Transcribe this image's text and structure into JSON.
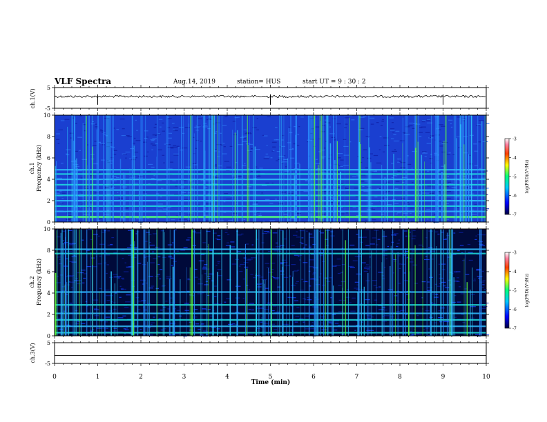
{
  "header": {
    "title": "VLF Spectra",
    "date": "Aug.14, 2019",
    "station": "station= HUS",
    "start": "start  UT =   9 : 30 : 2"
  },
  "chart_data": [
    {
      "type": "line",
      "panel": "ch1-waveform",
      "ylabel": "ch.1(V)",
      "ylim": [
        -5,
        5
      ],
      "yticks": [
        "5",
        "-5"
      ],
      "baseline_value": 0.7,
      "spikes_at_time_min": [
        1.0,
        5.0,
        9.0
      ]
    },
    {
      "type": "heatmap",
      "panel": "ch1-spectrogram",
      "ylabel_top": "ch.1",
      "ylabel": "Frequency  (kHz)",
      "ylim": [
        0,
        10
      ],
      "yticks": [
        "10",
        "8",
        "6",
        "4",
        "2",
        "0"
      ],
      "colorbar": {
        "label": "log(PSD)(V²/Hz)",
        "range": [
          -7,
          -3
        ],
        "ticks": [
          "-3",
          "-4",
          "-5",
          "-6",
          "-7"
        ]
      },
      "bright_bands_khz": [
        0.5,
        1.0,
        1.5,
        2.0,
        2.5,
        3.0,
        3.5,
        4.0,
        4.5,
        4.9
      ]
    },
    {
      "type": "heatmap",
      "panel": "ch2-spectrogram",
      "ylabel_top": "ch.2",
      "ylabel": "Frequency  (kHz)",
      "ylim": [
        0,
        10
      ],
      "yticks": [
        "10",
        "8",
        "6",
        "4",
        "2",
        "0"
      ],
      "colorbar": {
        "label": "log(PSD)(V²/Hz)",
        "range": [
          -7,
          -3
        ],
        "ticks": [
          "-3",
          "-4",
          "-5",
          "-6",
          "-7"
        ]
      },
      "bright_bands_khz": [
        0.3,
        0.9,
        1.5,
        2.1,
        2.9,
        4.1,
        7.7,
        8.1
      ]
    },
    {
      "type": "line",
      "panel": "ch3-waveform",
      "ylabel": "ch.3(V)",
      "ylim": [
        -5,
        5
      ],
      "yticks": [
        "5",
        "-5"
      ],
      "baseline_value": -1.2
    }
  ],
  "xaxis": {
    "label": "Time  (min)",
    "xlim": [
      0,
      10
    ],
    "ticks": [
      "0",
      "1",
      "2",
      "3",
      "4",
      "5",
      "6",
      "7",
      "8",
      "9",
      "10"
    ]
  }
}
